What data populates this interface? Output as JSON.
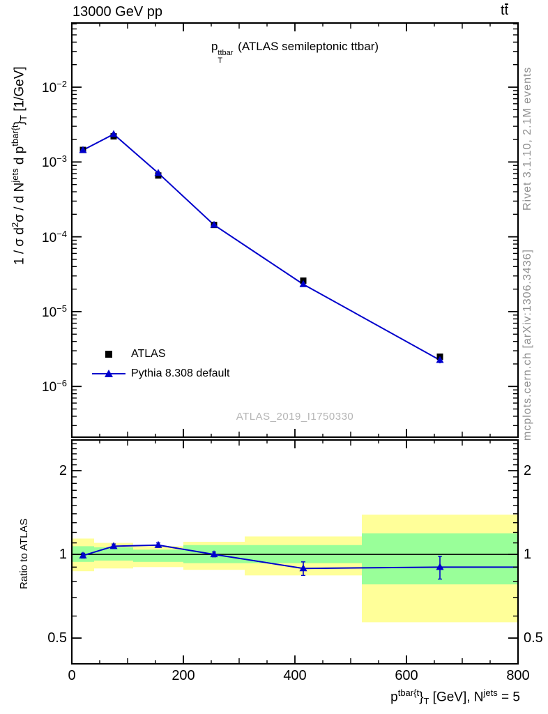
{
  "header": {
    "collision": "13000 GeV pp",
    "process_t1": "t",
    "process_t2": "t"
  },
  "panel_title": {
    "base": "p",
    "sup": "ttbar",
    "sub": "T",
    "rest": " (ATLAS semileptonic ttbar)"
  },
  "watermark": "ATLAS_2019_I1750330",
  "side_notes": {
    "generator": "Rivet 3.1.10,  2.1M events",
    "reference": "mcplots.cern.ch [arXiv:1306.3436]"
  },
  "legend": [
    {
      "label": "ATLAS",
      "marker": "black-square"
    },
    {
      "label": "Pythia 8.308 default",
      "marker": "blue-line-triangle"
    }
  ],
  "axis_labels": {
    "y": {
      "p1": "1 / σ d",
      "s1": "2",
      "p2": "σ / d N",
      "s2": "jets",
      "p3": " d p",
      "s3": "tbar{t",
      "p4": "}",
      "b1": "T",
      "p5": " [1/GeV]"
    },
    "x": {
      "p1": "p",
      "s1": "tbar{t",
      "p2": "}",
      "b1": "T",
      "p3": " [GeV], N",
      "s2": "jets",
      "p4": " = 5"
    },
    "ratio": "Ratio to ATLAS"
  },
  "colors": {
    "atlas": "#000000",
    "pythia": "#0000cc",
    "band_yellow": "#ffff99",
    "band_green": "#99ff99",
    "gray_text": "#8f8f8f",
    "watermark": "#b5b5b5"
  },
  "chart_data": {
    "type": "line",
    "title": "p_T^ttbar (ATLAS semileptonic ttbar)",
    "xlabel": "p^tbar{t}_T [GeV], N^jets = 5",
    "ylabel": "1 / sigma d2sigma / d N^jets d p^tbar{t}_T [1/GeV]",
    "x_bin_edges_gev": [
      0,
      40,
      110,
      200,
      310,
      520,
      800
    ],
    "x_bin_centers_gev": [
      20,
      75,
      155,
      255,
      415,
      660
    ],
    "series": [
      {
        "name": "ATLAS",
        "marker": "square",
        "color": "#000000",
        "line": false,
        "values": [
          0.00145,
          0.0022,
          0.00066,
          0.000144,
          2.6e-05,
          2.5e-06
        ]
      },
      {
        "name": "Pythia 8.308 default",
        "marker": "triangle",
        "color": "#0000cc",
        "line": true,
        "values": [
          0.00144,
          0.00235,
          0.00071,
          0.000144,
          2.32e-05,
          2.25e-06
        ]
      }
    ],
    "ratio_panel": {
      "series_name": "Pythia 8.308 default / ATLAS",
      "values": [
        0.99,
        1.07,
        1.08,
        1.0,
        0.89,
        0.9
      ],
      "errors": [
        0.02,
        0.02,
        0.02,
        0.02,
        0.05,
        0.085
      ],
      "band_yellow_lo": [
        0.87,
        0.89,
        0.9,
        0.88,
        0.84,
        0.57
      ],
      "band_yellow_hi": [
        1.14,
        1.1,
        1.07,
        1.11,
        1.16,
        1.39
      ],
      "band_green_lo": [
        0.94,
        0.95,
        0.94,
        0.93,
        0.93,
        0.78
      ],
      "band_green_hi": [
        1.07,
        1.06,
        1.04,
        1.08,
        1.08,
        1.19
      ],
      "reference_line": 1
    },
    "x_axis": {
      "range": [
        0,
        800
      ],
      "major_ticks": [
        0,
        200,
        400,
        600,
        800
      ],
      "medium_tick_step": 100,
      "minor_tick_step": 50
    },
    "y_axis": {
      "scale": "log",
      "range": [
        2.1e-07,
        0.072
      ],
      "labeled_exponents": [
        -2,
        -3,
        -4,
        -5,
        -6
      ]
    },
    "ratio_axis": {
      "scale": "log",
      "range": [
        0.404,
        2.58
      ],
      "labeled_ticks": [
        "2",
        "1",
        "0.5"
      ],
      "labeled_values": [
        2,
        1,
        0.5
      ],
      "minor_tick_min": 0.5,
      "minor_tick_max": 2.5,
      "minor_tick_step": 0.1
    }
  }
}
